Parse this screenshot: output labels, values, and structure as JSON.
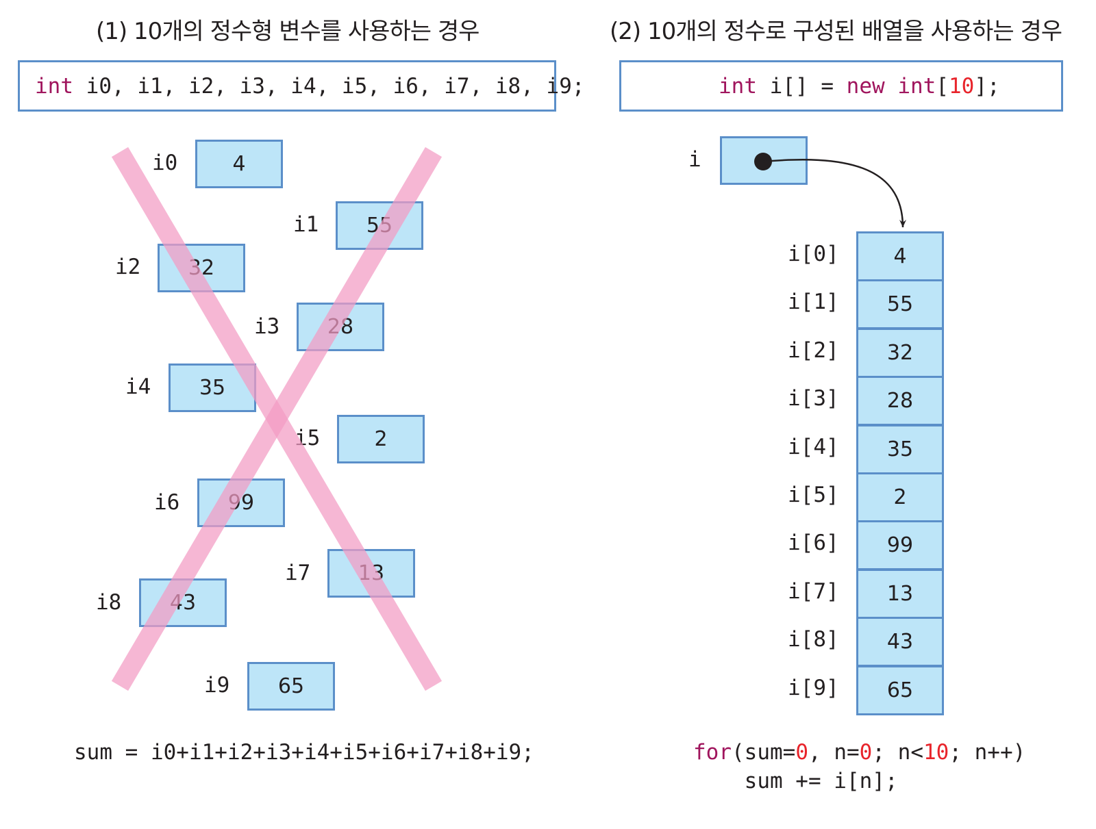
{
  "left": {
    "title": "(1) 10개의 정수형 변수를 사용하는 경우",
    "decl_keyword": "int",
    "decl_rest": " i0, i1, i2, i3, i4, i5, i6, i7, i8, i9;",
    "vars": [
      {
        "name": "i0",
        "value": "4"
      },
      {
        "name": "i1",
        "value": "55"
      },
      {
        "name": "i2",
        "value": "32"
      },
      {
        "name": "i3",
        "value": "28"
      },
      {
        "name": "i4",
        "value": "35"
      },
      {
        "name": "i5",
        "value": "2"
      },
      {
        "name": "i6",
        "value": "99"
      },
      {
        "name": "i7",
        "value": "13"
      },
      {
        "name": "i8",
        "value": "43"
      },
      {
        "name": "i9",
        "value": "65"
      }
    ],
    "sum_code": "sum = i0+i1+i2+i3+i4+i5+i6+i7+i8+i9;"
  },
  "right": {
    "title": "(2) 10개의 정수로 구성된 배열을 사용하는 경우",
    "decl": {
      "kw1": "int",
      "mid1": " i[] = ",
      "kw2": "new",
      "mid2": " ",
      "kw3": "int",
      "open": "[",
      "size": "10",
      "close": "];"
    },
    "ref_label": "i",
    "array": [
      {
        "label": "i[0]",
        "value": "4"
      },
      {
        "label": "i[1]",
        "value": "55"
      },
      {
        "label": "i[2]",
        "value": "32"
      },
      {
        "label": "i[3]",
        "value": "28"
      },
      {
        "label": "i[4]",
        "value": "35"
      },
      {
        "label": "i[5]",
        "value": "2"
      },
      {
        "label": "i[6]",
        "value": "99"
      },
      {
        "label": "i[7]",
        "value": "13"
      },
      {
        "label": "i[8]",
        "value": "43"
      },
      {
        "label": "i[9]",
        "value": "65"
      }
    ],
    "for_code": {
      "kw": "for",
      "p1": "(sum=",
      "n1": "0",
      "p2": ", n=",
      "n2": "0",
      "p3": "; n<",
      "n3": "10",
      "p4": "; n++)",
      "line2": "    sum += i[n];"
    }
  },
  "colors": {
    "cell_fill": "#bde5f8",
    "cell_border": "#5b8fc9",
    "keyword": "#a0155d",
    "number": "#e8242b",
    "cross": "#f29bc4"
  }
}
